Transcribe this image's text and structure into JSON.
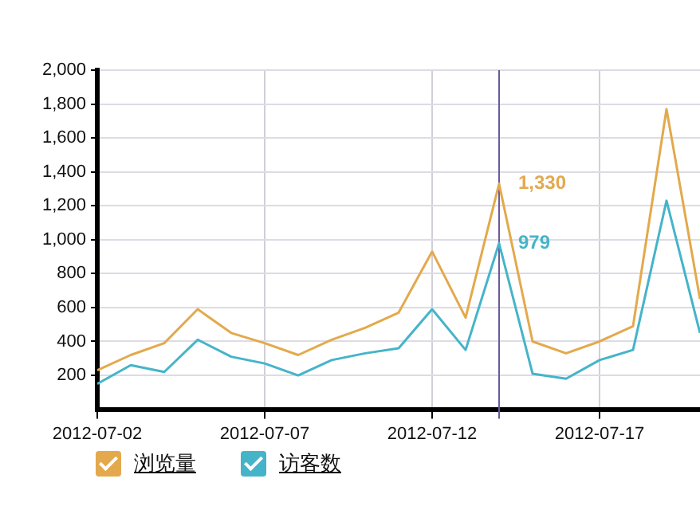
{
  "chart_data": {
    "type": "line",
    "x": [
      "2012-07-02",
      "2012-07-03",
      "2012-07-04",
      "2012-07-05",
      "2012-07-06",
      "2012-07-07",
      "2012-07-08",
      "2012-07-09",
      "2012-07-10",
      "2012-07-11",
      "2012-07-12",
      "2012-07-13",
      "2012-07-14",
      "2012-07-15",
      "2012-07-16",
      "2012-07-17",
      "2012-07-18",
      "2012-07-19",
      "2012-07-20"
    ],
    "series": [
      {
        "name": "浏览量",
        "color": "#e3a94c",
        "values": [
          230,
          320,
          390,
          590,
          450,
          390,
          320,
          410,
          480,
          570,
          930,
          540,
          1330,
          400,
          330,
          400,
          490,
          1770,
          650
        ],
        "value_labels": [
          null,
          null,
          null,
          null,
          null,
          null,
          null,
          null,
          null,
          null,
          null,
          null,
          "1,330",
          null,
          null,
          null,
          null,
          null,
          null
        ]
      },
      {
        "name": "访客数",
        "color": "#45b4c9",
        "values": [
          150,
          260,
          220,
          410,
          310,
          270,
          200,
          290,
          330,
          360,
          590,
          350,
          979,
          210,
          180,
          290,
          350,
          1230,
          450
        ],
        "value_labels": [
          null,
          null,
          null,
          null,
          null,
          null,
          null,
          null,
          null,
          null,
          null,
          null,
          "979",
          null,
          null,
          null,
          null,
          null,
          null
        ]
      }
    ],
    "xlim": [
      "2012-07-02",
      "2012-07-20"
    ],
    "xticks": [
      "2012-07-02",
      "2012-07-07",
      "2012-07-12",
      "2012-07-17"
    ],
    "ylim": [
      0,
      2000
    ],
    "yticks": [
      200,
      400,
      600,
      800,
      {
        "value": 1000,
        "label": "1,000"
      },
      {
        "value": 1200,
        "label": "1,200"
      },
      {
        "value": 1400,
        "label": "1,400"
      },
      {
        "value": 1600,
        "label": "1,600"
      },
      {
        "value": 1800,
        "label": "1,800"
      },
      {
        "value": 2000,
        "label": "2,000"
      }
    ],
    "ref_lines": [
      {
        "axis": "x",
        "value": "2012-07-14",
        "color": "#6a5a9c"
      }
    ],
    "grid": true,
    "legend": "bottom",
    "marker": "none",
    "line_style": "solid"
  }
}
